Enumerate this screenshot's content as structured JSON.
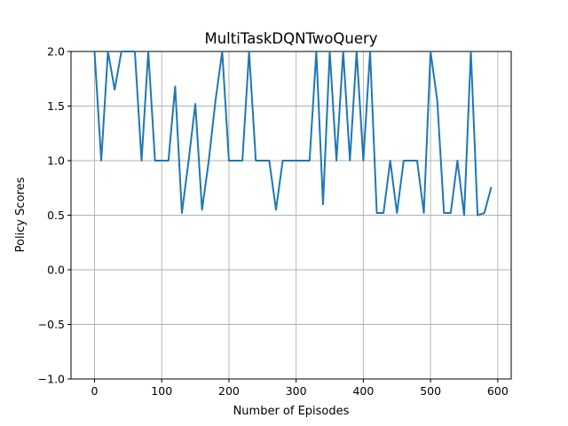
{
  "chart_data": {
    "type": "line",
    "title": "MultiTaskDQNTwoQuery",
    "xlabel": "Number of Episodes",
    "ylabel": "Policy Scores",
    "xlim": [
      -35,
      620
    ],
    "ylim": [
      -1.0,
      2.0
    ],
    "x_ticks": [
      0,
      100,
      200,
      300,
      400,
      500,
      600
    ],
    "x_tick_labels": [
      "0",
      "100",
      "200",
      "300",
      "400",
      "500",
      "600"
    ],
    "y_ticks": [
      -1.0,
      -0.5,
      0.0,
      0.5,
      1.0,
      1.5,
      2.0
    ],
    "y_tick_labels": [
      "−1.0",
      "−0.5",
      "0.0",
      "0.5",
      "1.0",
      "1.5",
      "2.0"
    ],
    "grid": true,
    "colors": {
      "series": "#1f77b4"
    },
    "series": [
      {
        "x": [
          0,
          10,
          20,
          30,
          40,
          50,
          60,
          70,
          80,
          90,
          100,
          110,
          120,
          130,
          140,
          150,
          160,
          170,
          180,
          190,
          200,
          210,
          220,
          230,
          240,
          250,
          260,
          270,
          280,
          290,
          300,
          310,
          320,
          330,
          340,
          350,
          360,
          370,
          380,
          390,
          400,
          410,
          420,
          430,
          440,
          450,
          460,
          470,
          480,
          490,
          500,
          510,
          520,
          530,
          540,
          550,
          560,
          570,
          580,
          590
        ],
        "values": [
          2.0,
          1.0,
          2.0,
          1.65,
          2.0,
          2.0,
          2.0,
          1.0,
          2.0,
          1.0,
          1.0,
          1.0,
          1.68,
          0.52,
          1.0,
          1.52,
          0.55,
          1.0,
          1.55,
          2.0,
          1.0,
          1.0,
          1.0,
          2.0,
          1.0,
          1.0,
          1.0,
          0.55,
          1.0,
          1.0,
          1.0,
          1.0,
          1.0,
          2.0,
          0.6,
          2.0,
          1.0,
          2.0,
          1.0,
          2.0,
          1.0,
          2.0,
          0.52,
          0.52,
          1.0,
          0.52,
          1.0,
          1.0,
          1.0,
          0.52,
          2.0,
          1.55,
          0.52,
          0.52,
          1.0,
          0.5,
          2.0,
          0.5,
          0.52,
          0.75
        ]
      }
    ]
  }
}
